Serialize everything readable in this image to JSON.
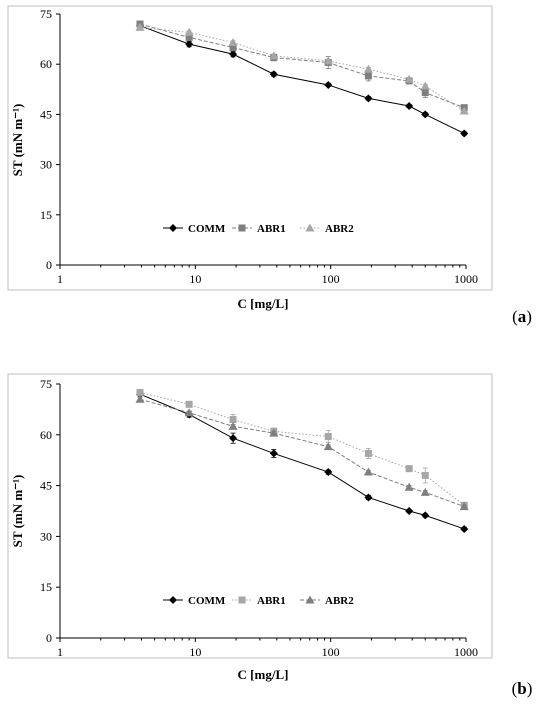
{
  "chart_data": [
    {
      "type": "line",
      "panel_label": "(a)",
      "panel_label_parts": [
        "(",
        "a",
        ")"
      ],
      "xlabel": "C [mg/L]",
      "ylabel": "ST (mN m⁻¹)",
      "xscale": "log",
      "xlim": [
        1,
        1000
      ],
      "ylim": [
        0,
        75
      ],
      "xticks": [
        1,
        10,
        100,
        1000
      ],
      "xtick_labels": [
        "1",
        "10",
        "100",
        "1000"
      ],
      "yticks": [
        0,
        15,
        30,
        45,
        60,
        75
      ],
      "ytick_labels": [
        "0",
        "15",
        "30",
        "45",
        "60",
        "75"
      ],
      "grid": false,
      "legend_position": "bottom-center",
      "series": [
        {
          "name": "COMM",
          "marker": "diamond",
          "line": "solid",
          "color": "#000000",
          "x": [
            3.9,
            9,
            19,
            38,
            96,
            190,
            380,
            500,
            970
          ],
          "y": [
            71.5,
            66,
            63,
            57,
            53.8,
            49.8,
            47.5,
            45,
            39.3
          ],
          "err": [
            0.5,
            0.8,
            0.8,
            0.6,
            0.5,
            0.5,
            0.5,
            0.5,
            0.5
          ]
        },
        {
          "name": "ABR1",
          "marker": "square",
          "line": "dashed",
          "color": "#7f7f7f",
          "x": [
            3.9,
            9,
            19,
            38,
            96,
            190,
            380,
            500,
            970
          ],
          "y": [
            72,
            68,
            65,
            62,
            60.5,
            56.5,
            55,
            51.5,
            47
          ],
          "err": [
            0.5,
            0.8,
            1,
            1,
            1.8,
            1.5,
            0.8,
            1.5,
            0.8
          ]
        },
        {
          "name": "ABR2",
          "marker": "triangle",
          "line": "dotted",
          "color": "#a6a6a6",
          "x": [
            3.9,
            9,
            19,
            38,
            96,
            190,
            380,
            500,
            970
          ],
          "y": [
            71,
            69.5,
            66.5,
            62.5,
            61,
            58.5,
            55.5,
            53.5,
            46
          ],
          "err": [
            0.5,
            0.5,
            0.5,
            0.5,
            0.5,
            0.5,
            0.5,
            0.5,
            0.5
          ]
        }
      ]
    },
    {
      "type": "line",
      "panel_label": "(b)",
      "panel_label_parts": [
        "(",
        "b",
        ")"
      ],
      "xlabel": "C [mg/L]",
      "ylabel": "ST (mN m⁻¹)",
      "xscale": "log",
      "xlim": [
        1,
        1000
      ],
      "ylim": [
        0,
        75
      ],
      "xticks": [
        1,
        10,
        100,
        1000
      ],
      "xtick_labels": [
        "1",
        "10",
        "100",
        "1000"
      ],
      "yticks": [
        0,
        15,
        30,
        45,
        60,
        75
      ],
      "ytick_labels": [
        "0",
        "15",
        "30",
        "45",
        "60",
        "75"
      ],
      "grid": false,
      "legend_position": "bottom-center",
      "series": [
        {
          "name": "COMM",
          "marker": "diamond",
          "line": "solid",
          "color": "#000000",
          "x": [
            3.9,
            9,
            19,
            38,
            96,
            190,
            380,
            500,
            970
          ],
          "y": [
            72,
            66,
            59,
            54.5,
            49,
            41.5,
            37.5,
            36.2,
            32.2
          ],
          "err": [
            0.5,
            0.8,
            1.5,
            1.2,
            0.6,
            0.6,
            0.5,
            0.5,
            0.5
          ]
        },
        {
          "name": "ABR1",
          "marker": "square",
          "line": "dotted",
          "color": "#a6a6a6",
          "x": [
            3.9,
            9,
            19,
            38,
            96,
            190,
            380,
            500,
            970
          ],
          "y": [
            72.5,
            69,
            64.5,
            61,
            59.5,
            54.5,
            50,
            48,
            39.2
          ],
          "err": [
            0.5,
            0.8,
            1.5,
            1,
            1.8,
            1.5,
            0.5,
            2.2,
            0.8
          ]
        },
        {
          "name": "ABR2",
          "marker": "triangle",
          "line": "dashed",
          "color": "#7f7f7f",
          "x": [
            3.9,
            9,
            19,
            38,
            96,
            190,
            380,
            500,
            970
          ],
          "y": [
            70.5,
            66.5,
            62.5,
            60.5,
            56.5,
            49,
            44.5,
            43,
            38.8
          ],
          "err": [
            0.5,
            0.5,
            0.5,
            0.5,
            0.5,
            0.5,
            0.5,
            0.5,
            0.5
          ]
        }
      ]
    }
  ]
}
